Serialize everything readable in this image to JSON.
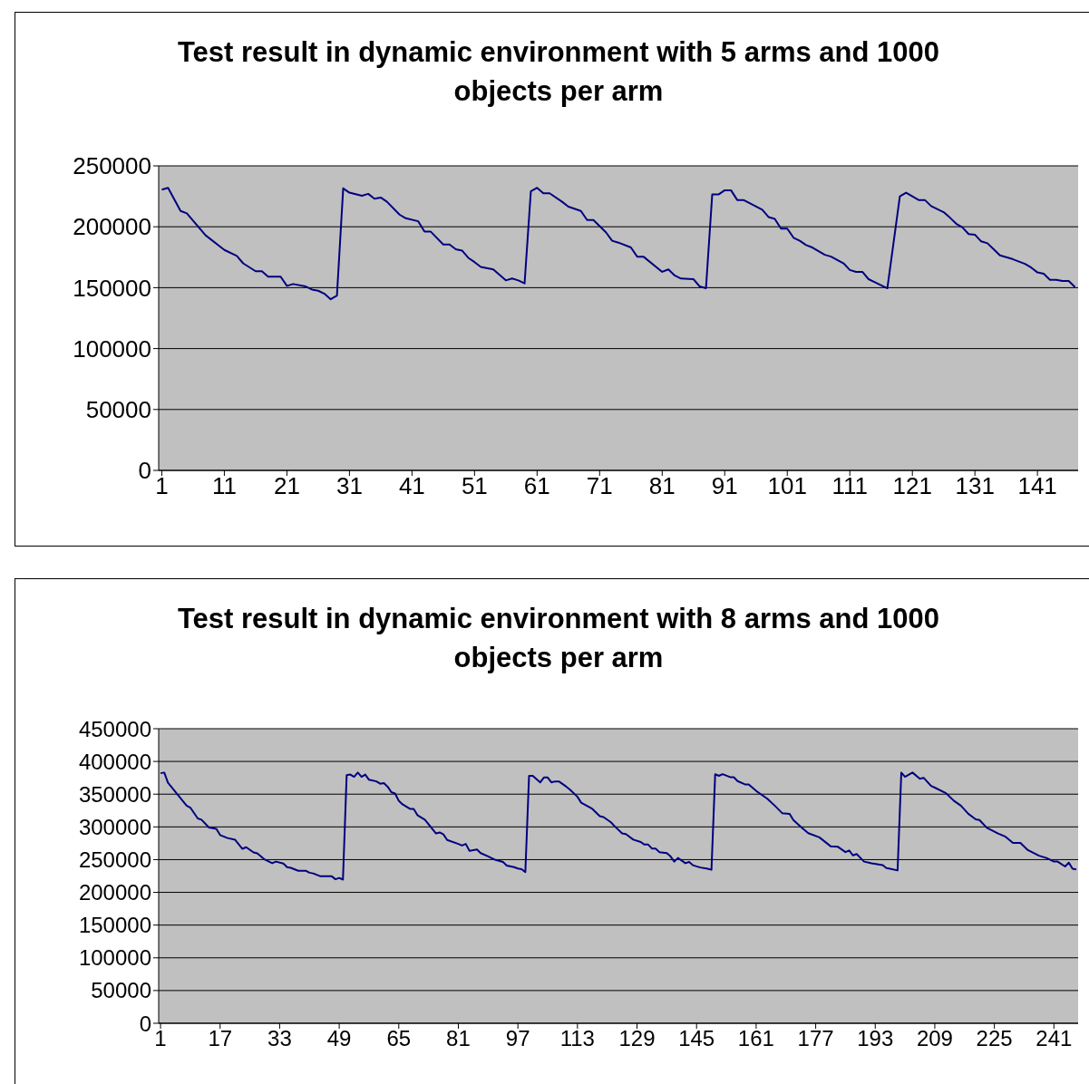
{
  "chart_data": [
    {
      "type": "line",
      "title": "Test result in dynamic environment with 5 arms and 1000 objects per arm",
      "xlim": [
        0.5,
        147.5
      ],
      "xticks": [
        1,
        11,
        21,
        31,
        41,
        51,
        61,
        71,
        81,
        91,
        101,
        111,
        121,
        131,
        141
      ],
      "ylim": [
        0,
        250000
      ],
      "yticks": [
        0,
        50000,
        100000,
        150000,
        200000,
        250000
      ],
      "grid": "y",
      "marker": "none",
      "series": [
        {
          "color": "#000080",
          "x": [
            1,
            2,
            3,
            4,
            5,
            8,
            11,
            13,
            14,
            16,
            17,
            18,
            20,
            21,
            22,
            24,
            25,
            26,
            27,
            28,
            29,
            30,
            31,
            33,
            34,
            35,
            36,
            37,
            39,
            40,
            42,
            43,
            44,
            46,
            47,
            48,
            49,
            50,
            51,
            52,
            54,
            56,
            57,
            58,
            59,
            60,
            61,
            62,
            63,
            65,
            66,
            68,
            69,
            70,
            72,
            73,
            74,
            76,
            77,
            78,
            81,
            82,
            83,
            84,
            86,
            87,
            88,
            89,
            90,
            91,
            92,
            93,
            94,
            97,
            98,
            99,
            100,
            101,
            102,
            103,
            104,
            105,
            107,
            108,
            110,
            111,
            112,
            113,
            114,
            115,
            117,
            119,
            120,
            121,
            122,
            123,
            124,
            126,
            127,
            128,
            129,
            130,
            131,
            132,
            133,
            134,
            135,
            137,
            139,
            140,
            141,
            142,
            143,
            144,
            145,
            146,
            147
          ],
          "values": [
            230500,
            232000,
            222500,
            213000,
            211000,
            193000,
            181000,
            176000,
            170000,
            163500,
            163500,
            159000,
            159000,
            151500,
            153000,
            151000,
            148500,
            147500,
            145000,
            140500,
            143500,
            231500,
            228000,
            225500,
            227000,
            223000,
            224000,
            220500,
            210000,
            207000,
            204500,
            196000,
            196000,
            185500,
            185500,
            181500,
            180500,
            174500,
            171000,
            167000,
            165000,
            156000,
            157500,
            156000,
            153500,
            229000,
            232000,
            227500,
            227500,
            220500,
            216500,
            213000,
            205500,
            205500,
            195500,
            188500,
            187000,
            183000,
            175500,
            175500,
            163000,
            165000,
            160000,
            157500,
            157000,
            151000,
            149500,
            226500,
            226500,
            230000,
            230000,
            222000,
            222000,
            214000,
            208000,
            206500,
            198500,
            198500,
            191000,
            188500,
            185000,
            183000,
            177000,
            175500,
            170000,
            164500,
            163000,
            163000,
            157000,
            154500,
            149500,
            225000,
            228000,
            225000,
            222000,
            222000,
            217000,
            212000,
            207500,
            202500,
            199500,
            194000,
            193500,
            188000,
            186500,
            181500,
            176500,
            173500,
            169500,
            166500,
            162500,
            161500,
            156500,
            156500,
            155500,
            155500,
            150500
          ]
        }
      ]
    },
    {
      "type": "line",
      "title": "Test result in dynamic environment with 8 arms and 1000 objects per arm",
      "xlim": [
        0.5,
        247.5
      ],
      "xticks": [
        1,
        17,
        33,
        49,
        65,
        81,
        97,
        113,
        129,
        145,
        161,
        177,
        193,
        209,
        225,
        241
      ],
      "ylim": [
        0,
        450000
      ],
      "yticks": [
        0,
        50000,
        100000,
        150000,
        200000,
        250000,
        300000,
        350000,
        400000,
        450000
      ],
      "grid": "y",
      "marker": "none",
      "series": [
        {
          "color": "#000080",
          "x": [
            1,
            2,
            3,
            8,
            9,
            11,
            12,
            14,
            16,
            17,
            19,
            21,
            23,
            24,
            26,
            27,
            29,
            31,
            32,
            34,
            35,
            36,
            38,
            40,
            41,
            42,
            44,
            47,
            48,
            49,
            50,
            51,
            52,
            53,
            54,
            55,
            56,
            57,
            59,
            60,
            61,
            62,
            63,
            64,
            65,
            66,
            68,
            69,
            70,
            72,
            73,
            75,
            76,
            77,
            78,
            81,
            82,
            83,
            84,
            86,
            87,
            89,
            91,
            93,
            94,
            96,
            97,
            98,
            99,
            100,
            101,
            103,
            104,
            105,
            106,
            107,
            108,
            110,
            111,
            113,
            114,
            117,
            119,
            120,
            122,
            123,
            125,
            126,
            128,
            130,
            131,
            132,
            133,
            134,
            135,
            137,
            138,
            139,
            140,
            142,
            143,
            144,
            146,
            148,
            149,
            150,
            151,
            152,
            154,
            155,
            156,
            158,
            159,
            161,
            162,
            164,
            166,
            168,
            170,
            171,
            173,
            175,
            178,
            181,
            183,
            185,
            186,
            187,
            188,
            190,
            192,
            195,
            196,
            197,
            199,
            200,
            201,
            203,
            205,
            206,
            208,
            209,
            212,
            214,
            216,
            218,
            220,
            221,
            223,
            226,
            228,
            230,
            232,
            234,
            237,
            239,
            241,
            242,
            244,
            245,
            246,
            247
          ],
          "values": [
            382000,
            383000,
            367500,
            332500,
            329500,
            313000,
            311000,
            299000,
            297000,
            287500,
            283000,
            280500,
            266500,
            269000,
            261000,
            259500,
            250000,
            244500,
            247000,
            244000,
            238500,
            237500,
            233000,
            233000,
            230000,
            229000,
            224500,
            224500,
            220000,
            222000,
            219500,
            379000,
            380000,
            376500,
            383000,
            376500,
            380000,
            372000,
            369500,
            366000,
            367000,
            361500,
            353000,
            351000,
            340000,
            334500,
            327500,
            327500,
            318000,
            311000,
            304000,
            290000,
            291500,
            288500,
            280000,
            274000,
            271500,
            274000,
            263500,
            265500,
            260000,
            255000,
            249500,
            246500,
            241000,
            238500,
            236500,
            235500,
            231000,
            378000,
            378000,
            368000,
            375500,
            375500,
            368000,
            369500,
            369500,
            361500,
            357000,
            346000,
            337000,
            327500,
            316500,
            315000,
            307000,
            301000,
            290000,
            289000,
            280500,
            277000,
            273000,
            273000,
            267000,
            267000,
            261500,
            260000,
            255000,
            247000,
            252500,
            244500,
            246500,
            241500,
            238000,
            236000,
            234500,
            380500,
            378000,
            380500,
            376000,
            376000,
            370000,
            365000,
            365000,
            355000,
            351000,
            343000,
            332500,
            321000,
            320000,
            310500,
            300000,
            290500,
            284000,
            270500,
            269500,
            261500,
            264000,
            256500,
            258500,
            247000,
            244500,
            241500,
            237000,
            236000,
            233500,
            383000,
            376500,
            383000,
            373500,
            375000,
            362500,
            360000,
            351500,
            340500,
            332500,
            320000,
            311500,
            310500,
            298500,
            290000,
            285000,
            275500,
            275500,
            264500,
            256000,
            252500,
            247000,
            247000,
            239500,
            245500,
            236000,
            235000
          ]
        }
      ]
    }
  ]
}
